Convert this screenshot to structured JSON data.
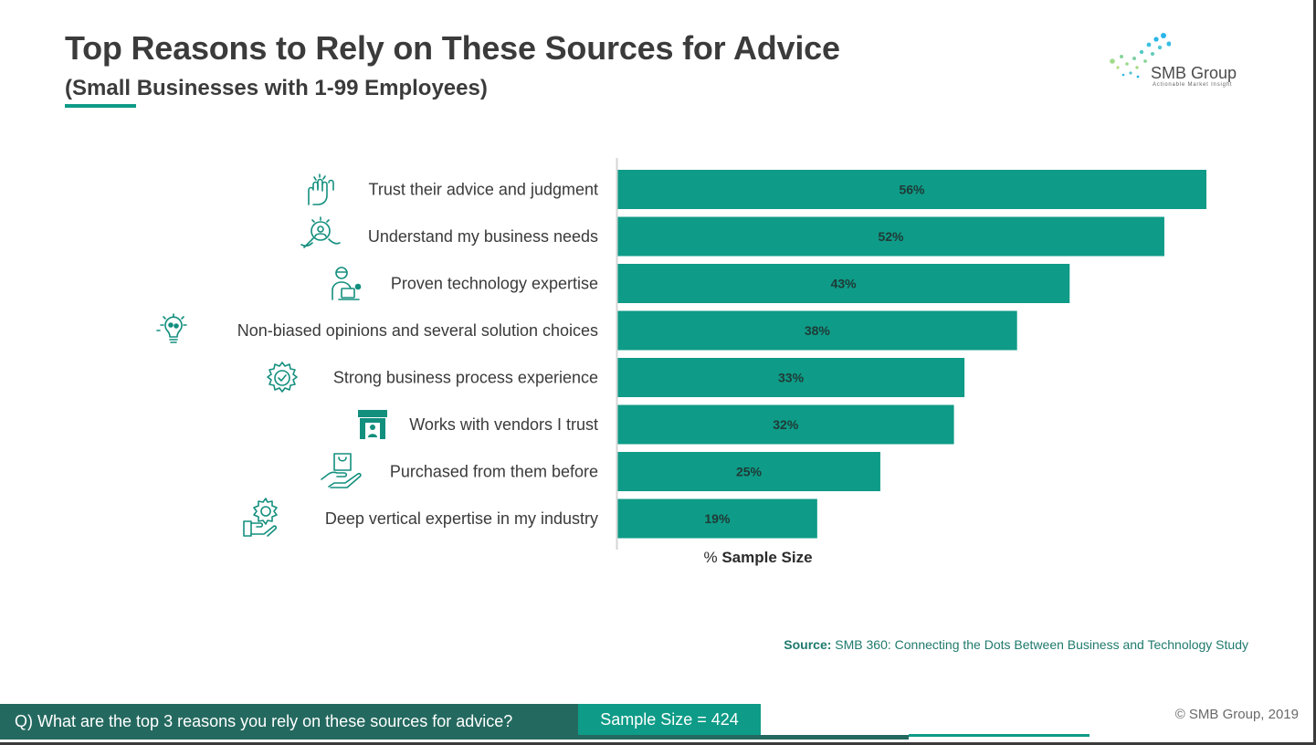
{
  "header": {
    "title": "Top Reasons to Rely on These Sources for Advice",
    "subtitle": "(Small Businesses with 1-99 Employees)"
  },
  "logo": {
    "name": "SMB Group",
    "tagline": "Actionable Market Insight"
  },
  "colors": {
    "bar": "#0e9b87",
    "dark_teal": "#24695f",
    "icon": "#138f7e"
  },
  "chart_data": {
    "type": "bar",
    "orientation": "horizontal",
    "categories": [
      "Trust their advice and judgment",
      "Understand my business needs",
      "Proven technology expertise",
      "Non-biased opinions and several solution choices",
      "Strong business process experience",
      "Works with vendors I trust",
      "Purchased from them before",
      "Deep vertical expertise in my industry"
    ],
    "values": [
      56,
      52,
      43,
      38,
      33,
      32,
      25,
      19
    ],
    "value_labels": [
      "56%",
      "52%",
      "43%",
      "38%",
      "33%",
      "32%",
      "25%",
      "19%"
    ],
    "category_icons": [
      "high-five-icon",
      "business-needs-icon",
      "tech-expert-icon",
      "lightbulb-icon",
      "gear-check-icon",
      "vendor-store-icon",
      "purchase-hand-icon",
      "gear-hand-icon"
    ],
    "xlabel_prefix": "%",
    "xlabel_bold": "Sample Size",
    "xlim": [
      0,
      56
    ],
    "grid": false
  },
  "footer": {
    "source_label": "Source:",
    "source_text": "SMB 360: Connecting the Dots Between Business and Technology Study",
    "question": "Q) What are the top 3 reasons you rely on these sources for advice?",
    "sample_size": "Sample Size = 424",
    "copyright": "© SMB Group, 2019"
  }
}
